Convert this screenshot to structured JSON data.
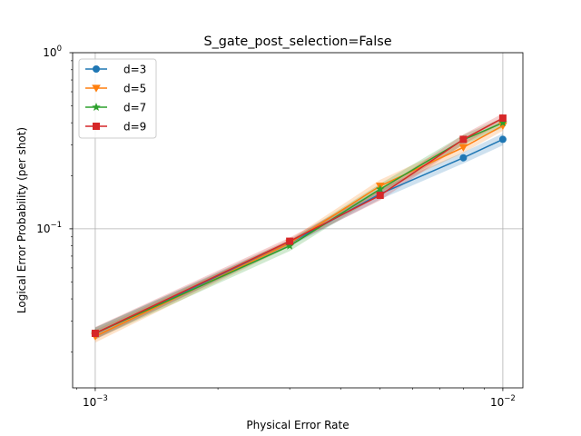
{
  "chart_data": {
    "type": "line",
    "title": "S_gate_post_selection=False",
    "xlabel": "Physical Error Rate",
    "ylabel": "Logical Error Probability (per shot)",
    "xscale": "log",
    "yscale": "log",
    "xlim": [
      0.00088,
      0.0112
    ],
    "ylim": [
      0.0125,
      1.0
    ],
    "grid": "major",
    "legend_position": "top-left",
    "x": [
      0.001,
      0.003,
      0.005,
      0.008,
      0.01
    ],
    "x_tick_labels": [
      {
        "value": 0.001,
        "base": "10",
        "exp": "−3"
      },
      {
        "value": 0.01,
        "base": "10",
        "exp": "−2"
      }
    ],
    "y_tick_labels": [
      {
        "value": 0.1,
        "base": "10",
        "exp": "−1"
      },
      {
        "value": 1.0,
        "base": "10",
        "exp": "0"
      }
    ],
    "series": [
      {
        "name": "d=3",
        "color": "#1f77b4",
        "marker": "circle",
        "values": [
          0.0255,
          0.083,
          0.158,
          0.253,
          0.322
        ],
        "lower": [
          0.0237,
          0.0795,
          0.147,
          0.235,
          0.298
        ],
        "upper": [
          0.0275,
          0.0868,
          0.17,
          0.272,
          0.348
        ]
      },
      {
        "name": "d=5",
        "color": "#ff7f0e",
        "marker": "triangle-down",
        "values": [
          0.0245,
          0.083,
          0.175,
          0.29,
          0.385
        ],
        "lower": [
          0.0226,
          0.0793,
          0.162,
          0.27,
          0.36
        ],
        "upper": [
          0.0266,
          0.087,
          0.19,
          0.312,
          0.412
        ]
      },
      {
        "name": "d=7",
        "color": "#2ca02c",
        "marker": "star",
        "values": [
          0.0255,
          0.08,
          0.168,
          0.32,
          0.4
        ],
        "lower": [
          0.0236,
          0.0748,
          0.157,
          0.3,
          0.375
        ],
        "upper": [
          0.0275,
          0.0855,
          0.18,
          0.342,
          0.428
        ]
      },
      {
        "name": "d=9",
        "color": "#d62728",
        "marker": "square",
        "values": [
          0.0255,
          0.085,
          0.155,
          0.322,
          0.425
        ],
        "lower": [
          0.0235,
          0.081,
          0.145,
          0.302,
          0.4
        ],
        "upper": [
          0.0277,
          0.0892,
          0.166,
          0.343,
          0.452
        ]
      }
    ]
  }
}
